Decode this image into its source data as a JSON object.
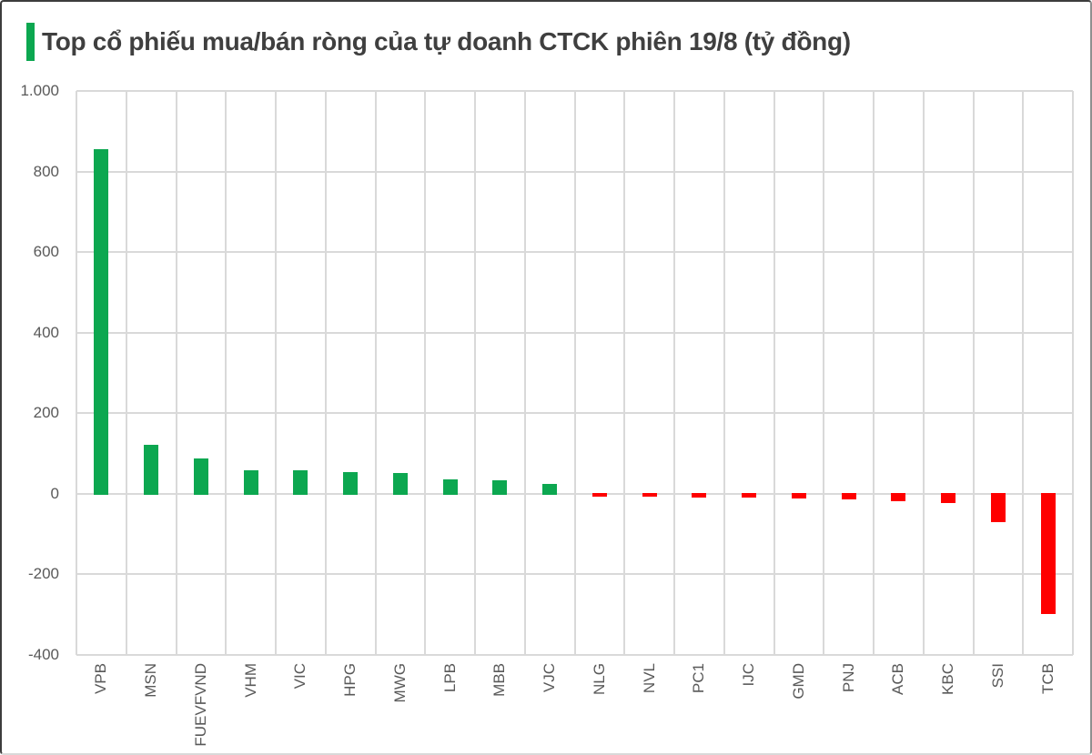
{
  "title": {
    "text": "Top cổ phiếu mua/bán ròng của tự doanh CTCK phiên 19/8 (tỷ đồng)"
  },
  "colors": {
    "accent": "#0CA750",
    "positive_bar": "#0CA750",
    "negative_bar": "#FE0000",
    "gridline": "#D9D9D9",
    "title_text": "#3F3F3F",
    "axis_text": "#595959"
  },
  "chart_data": {
    "type": "bar",
    "title": "Top cổ phiếu mua/bán ròng của tự doanh CTCK phiên 19/8 (tỷ đồng)",
    "unit": "tỷ đồng",
    "categories": [
      "VPB",
      "MSN",
      "FUEVFVND",
      "VHM",
      "VIC",
      "HPG",
      "MWG",
      "LPB",
      "MBB",
      "VJC",
      "NLG",
      "NVL",
      "PC1",
      "IJC",
      "GMD",
      "PNJ",
      "ACB",
      "KBC",
      "SSI",
      "TCB"
    ],
    "values": [
      857,
      123,
      89,
      61,
      60,
      56,
      53,
      38,
      36,
      26,
      -4,
      -5,
      -8,
      -7,
      -10,
      -12,
      -17,
      -20,
      -67,
      -297
    ],
    "ylim": [
      -400,
      1000
    ],
    "ytick_step": 200,
    "ytick_labels": [
      "1.000",
      "800",
      "600",
      "400",
      "200",
      "0",
      "-200",
      "-400"
    ],
    "ytick_values": [
      1000,
      800,
      600,
      400,
      200,
      0,
      -200,
      -400
    ],
    "grid": true,
    "legend": "none",
    "bar_color_rule": "green if positive, red if negative"
  }
}
